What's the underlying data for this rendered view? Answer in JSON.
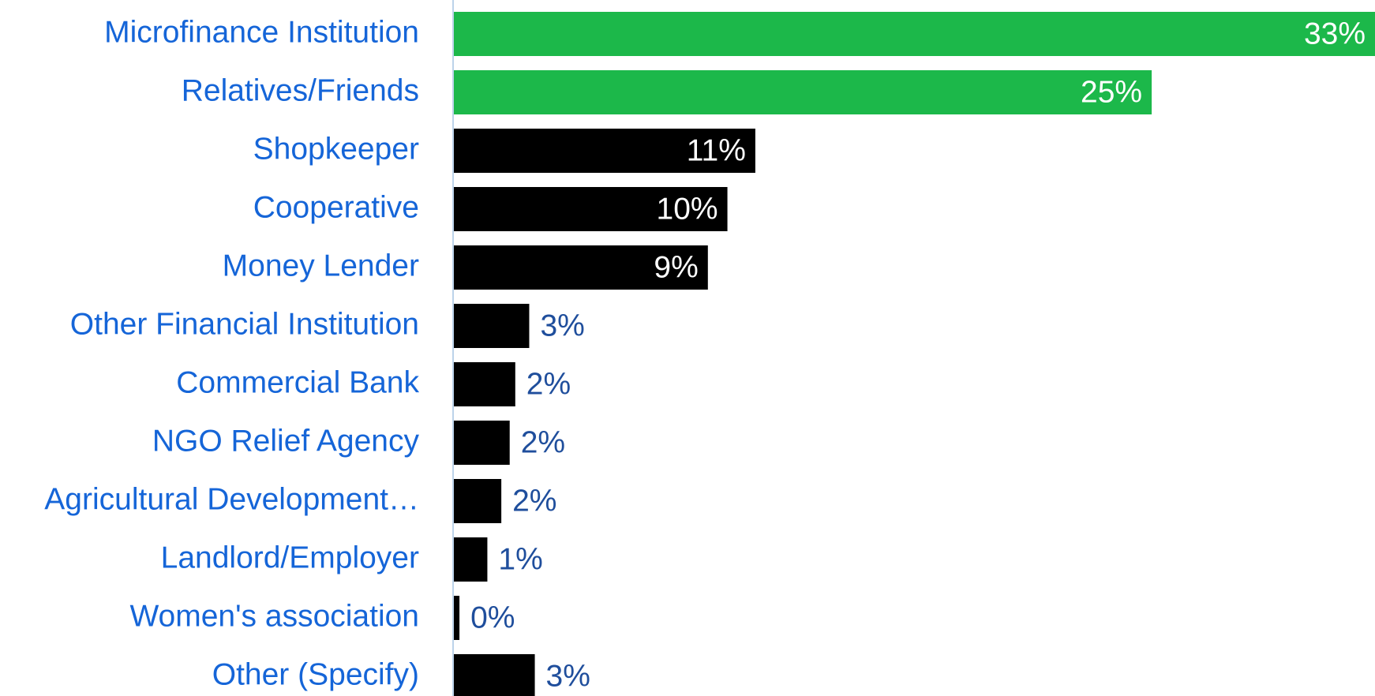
{
  "chart_data": {
    "type": "hbar",
    "categories": [
      "Microfinance Institution",
      "Relatives/Friends",
      "Shopkeeper",
      "Cooperative",
      "Money Lender",
      "Other Financial Institution",
      "Commercial Bank",
      "NGO Relief Agency",
      "Agricultural Development…",
      "Landlord/Employer",
      "Women's association",
      "Other (Specify)"
    ],
    "values": [
      33,
      25,
      10.8,
      9.8,
      9.1,
      2.7,
      2.2,
      2.0,
      1.7,
      1.2,
      0.2,
      2.9
    ],
    "value_labels": [
      "33%",
      "25%",
      "11%",
      "10%",
      "9%",
      "3%",
      "2%",
      "2%",
      "2%",
      "1%",
      "0%",
      "3%"
    ],
    "colors": [
      "#1cb84a",
      "#1cb84a",
      "#000000",
      "#000000",
      "#000000",
      "#000000",
      "#000000",
      "#000000",
      "#000000",
      "#000000",
      "#000000",
      "#000000"
    ]
  }
}
